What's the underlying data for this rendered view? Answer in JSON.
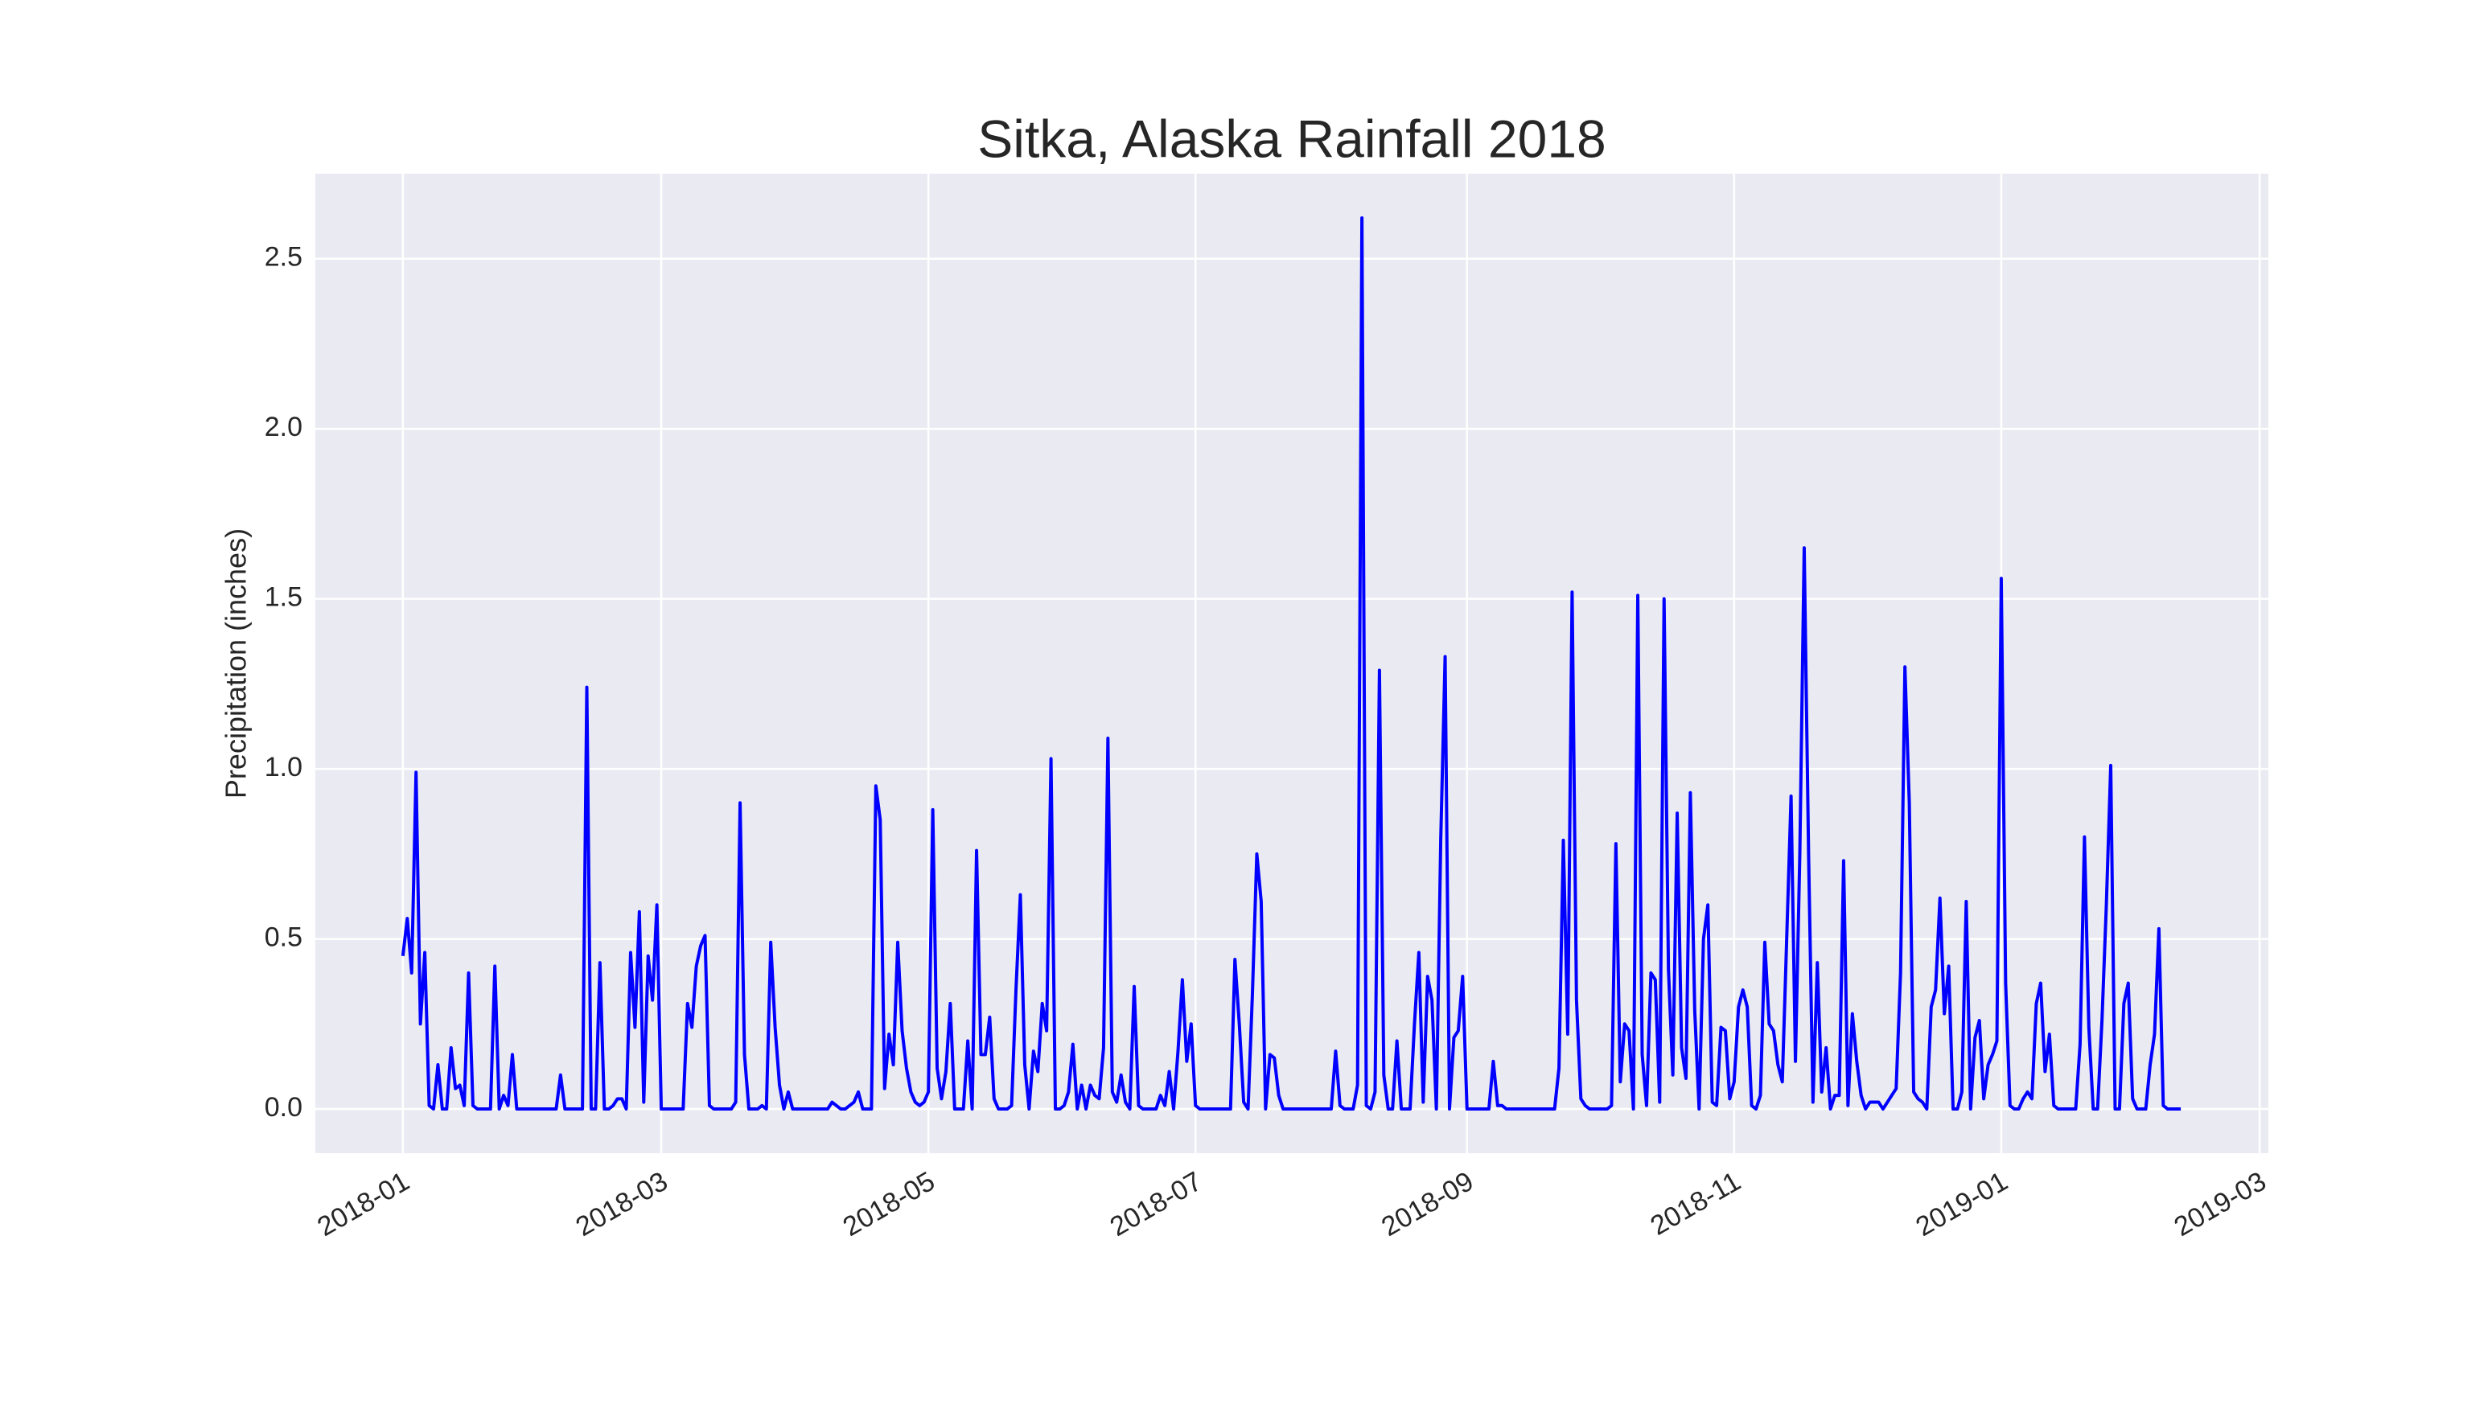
{
  "chart_data": {
    "type": "line",
    "title": "Sitka, Alaska Rainfall 2018",
    "ylabel": "Precipitation (inches)",
    "color": "#0000ff",
    "grid": true,
    "xlim": [
      "2017-12-12",
      "2019-03-03"
    ],
    "xticks": [
      {
        "value": "2018-01-01",
        "label": "2018-01"
      },
      {
        "value": "2018-03-01",
        "label": "2018-03"
      },
      {
        "value": "2018-05-01",
        "label": "2018-05"
      },
      {
        "value": "2018-07-01",
        "label": "2018-07"
      },
      {
        "value": "2018-09-01",
        "label": "2018-09"
      },
      {
        "value": "2018-11-01",
        "label": "2018-11"
      },
      {
        "value": "2019-01-01",
        "label": "2019-01"
      },
      {
        "value": "2019-03-01",
        "label": "2019-03"
      }
    ],
    "ylim": [
      -0.13,
      2.75
    ],
    "yticks": [
      {
        "value": 0,
        "label": "0.0"
      },
      0.5,
      {
        "value": 1,
        "label": "1.0"
      },
      1.5,
      {
        "value": 2,
        "label": "2.0"
      },
      2.5
    ],
    "x": [
      "2018-01-01",
      "2018-01-02",
      "2018-01-03",
      "2018-01-04",
      "2018-01-05",
      "2018-01-06",
      "2018-01-07",
      "2018-01-08",
      "2018-01-09",
      "2018-01-10",
      "2018-01-11",
      "2018-01-12",
      "2018-01-13",
      "2018-01-14",
      "2018-01-15",
      "2018-01-16",
      "2018-01-17",
      "2018-01-18",
      "2018-01-19",
      "2018-01-20",
      "2018-01-21",
      "2018-01-22",
      "2018-01-23",
      "2018-01-24",
      "2018-01-25",
      "2018-01-26",
      "2018-01-27",
      "2018-01-28",
      "2018-01-29",
      "2018-01-30",
      "2018-01-31",
      "2018-02-01",
      "2018-02-02",
      "2018-02-03",
      "2018-02-04",
      "2018-02-05",
      "2018-02-06",
      "2018-02-07",
      "2018-02-08",
      "2018-02-09",
      "2018-02-10",
      "2018-02-11",
      "2018-02-12",
      "2018-02-13",
      "2018-02-14",
      "2018-02-15",
      "2018-02-16",
      "2018-02-17",
      "2018-02-18",
      "2018-02-19",
      "2018-02-20",
      "2018-02-21",
      "2018-02-22",
      "2018-02-23",
      "2018-02-24",
      "2018-02-25",
      "2018-02-26",
      "2018-02-27",
      "2018-02-28",
      "2018-03-01",
      "2018-03-02",
      "2018-03-03",
      "2018-03-04",
      "2018-03-05",
      "2018-03-06",
      "2018-03-07",
      "2018-03-08",
      "2018-03-09",
      "2018-03-10",
      "2018-03-11",
      "2018-03-12",
      "2018-03-13",
      "2018-03-14",
      "2018-03-15",
      "2018-03-16",
      "2018-03-17",
      "2018-03-18",
      "2018-03-19",
      "2018-03-20",
      "2018-03-21",
      "2018-03-22",
      "2018-03-23",
      "2018-03-24",
      "2018-03-25",
      "2018-03-26",
      "2018-03-27",
      "2018-03-28",
      "2018-03-29",
      "2018-03-30",
      "2018-03-31",
      "2018-04-01",
      "2018-04-02",
      "2018-04-03",
      "2018-04-04",
      "2018-04-05",
      "2018-04-06",
      "2018-04-07",
      "2018-04-08",
      "2018-04-09",
      "2018-04-10",
      "2018-04-11",
      "2018-04-12",
      "2018-04-13",
      "2018-04-14",
      "2018-04-15",
      "2018-04-16",
      "2018-04-17",
      "2018-04-18",
      "2018-04-19",
      "2018-04-20",
      "2018-04-21",
      "2018-04-22",
      "2018-04-23",
      "2018-04-24",
      "2018-04-25",
      "2018-04-26",
      "2018-04-27",
      "2018-04-28",
      "2018-04-29",
      "2018-04-30",
      "2018-05-01",
      "2018-05-02",
      "2018-05-03",
      "2018-05-04",
      "2018-05-05",
      "2018-05-06",
      "2018-05-07",
      "2018-05-08",
      "2018-05-09",
      "2018-05-10",
      "2018-05-11",
      "2018-05-12",
      "2018-05-13",
      "2018-05-14",
      "2018-05-15",
      "2018-05-16",
      "2018-05-17",
      "2018-05-18",
      "2018-05-19",
      "2018-05-20",
      "2018-05-21",
      "2018-05-22",
      "2018-05-23",
      "2018-05-24",
      "2018-05-25",
      "2018-05-26",
      "2018-05-27",
      "2018-05-28",
      "2018-05-29",
      "2018-05-30",
      "2018-05-31",
      "2018-06-01",
      "2018-06-02",
      "2018-06-03",
      "2018-06-04",
      "2018-06-05",
      "2018-06-06",
      "2018-06-07",
      "2018-06-08",
      "2018-06-09",
      "2018-06-10",
      "2018-06-11",
      "2018-06-12",
      "2018-06-13",
      "2018-06-14",
      "2018-06-15",
      "2018-06-16",
      "2018-06-17",
      "2018-06-18",
      "2018-06-19",
      "2018-06-20",
      "2018-06-21",
      "2018-06-22",
      "2018-06-23",
      "2018-06-24",
      "2018-06-25",
      "2018-06-26",
      "2018-06-27",
      "2018-06-28",
      "2018-06-29",
      "2018-06-30",
      "2018-07-01",
      "2018-07-02",
      "2018-07-03",
      "2018-07-04",
      "2018-07-05",
      "2018-07-06",
      "2018-07-07",
      "2018-07-08",
      "2018-07-09",
      "2018-07-10",
      "2018-07-11",
      "2018-07-12",
      "2018-07-13",
      "2018-07-14",
      "2018-07-15",
      "2018-07-16",
      "2018-07-17",
      "2018-07-18",
      "2018-07-19",
      "2018-07-20",
      "2018-07-21",
      "2018-07-22",
      "2018-07-23",
      "2018-07-24",
      "2018-07-25",
      "2018-07-26",
      "2018-07-27",
      "2018-07-28",
      "2018-07-29",
      "2018-07-30",
      "2018-07-31",
      "2018-08-01",
      "2018-08-02",
      "2018-08-03",
      "2018-08-04",
      "2018-08-05",
      "2018-08-06",
      "2018-08-07",
      "2018-08-08",
      "2018-08-09",
      "2018-08-10",
      "2018-08-11",
      "2018-08-12",
      "2018-08-13",
      "2018-08-14",
      "2018-08-15",
      "2018-08-16",
      "2018-08-17",
      "2018-08-18",
      "2018-08-19",
      "2018-08-20",
      "2018-08-21",
      "2018-08-22",
      "2018-08-23",
      "2018-08-24",
      "2018-08-25",
      "2018-08-26",
      "2018-08-27",
      "2018-08-28",
      "2018-08-29",
      "2018-08-30",
      "2018-08-31",
      "2018-09-01",
      "2018-09-02",
      "2018-09-03",
      "2018-09-04",
      "2018-09-05",
      "2018-09-06",
      "2018-09-07",
      "2018-09-08",
      "2018-09-09",
      "2018-09-10",
      "2018-09-11",
      "2018-09-12",
      "2018-09-13",
      "2018-09-14",
      "2018-09-15",
      "2018-09-16",
      "2018-09-17",
      "2018-09-18",
      "2018-09-19",
      "2018-09-20",
      "2018-09-21",
      "2018-09-22",
      "2018-09-23",
      "2018-09-24",
      "2018-09-25",
      "2018-09-26",
      "2018-09-27",
      "2018-09-28",
      "2018-09-29",
      "2018-09-30",
      "2018-10-01",
      "2018-10-02",
      "2018-10-03",
      "2018-10-04",
      "2018-10-05",
      "2018-10-06",
      "2018-10-07",
      "2018-10-08",
      "2018-10-09",
      "2018-10-10",
      "2018-10-11",
      "2018-10-12",
      "2018-10-13",
      "2018-10-14",
      "2018-10-15",
      "2018-10-16",
      "2018-10-17",
      "2018-10-18",
      "2018-10-19",
      "2018-10-20",
      "2018-10-21",
      "2018-10-22",
      "2018-10-23",
      "2018-10-24",
      "2018-10-25",
      "2018-10-26",
      "2018-10-27",
      "2018-10-28",
      "2018-10-29",
      "2018-10-30",
      "2018-10-31",
      "2018-11-01",
      "2018-11-02",
      "2018-11-03",
      "2018-11-04",
      "2018-11-05",
      "2018-11-06",
      "2018-11-07",
      "2018-11-08",
      "2018-11-09",
      "2018-11-10",
      "2018-11-11",
      "2018-11-12",
      "2018-11-13",
      "2018-11-14",
      "2018-11-15",
      "2018-11-16",
      "2018-11-17",
      "2018-11-18",
      "2018-11-19",
      "2018-11-20",
      "2018-11-21",
      "2018-11-22",
      "2018-11-23",
      "2018-11-24",
      "2018-11-25",
      "2018-11-26",
      "2018-11-27",
      "2018-11-28",
      "2018-11-29",
      "2018-11-30",
      "2018-12-01",
      "2018-12-02",
      "2018-12-03",
      "2018-12-04",
      "2018-12-05",
      "2018-12-06",
      "2018-12-07",
      "2018-12-08",
      "2018-12-09",
      "2018-12-10",
      "2018-12-11",
      "2018-12-12",
      "2018-12-13",
      "2018-12-14",
      "2018-12-15",
      "2018-12-16",
      "2018-12-17",
      "2018-12-18",
      "2018-12-19",
      "2018-12-20",
      "2018-12-21",
      "2018-12-22",
      "2018-12-23",
      "2018-12-24",
      "2018-12-25",
      "2018-12-26",
      "2018-12-27",
      "2018-12-28",
      "2018-12-29",
      "2018-12-30",
      "2018-12-31",
      "2019-01-01",
      "2019-01-02",
      "2019-01-03",
      "2019-01-04",
      "2019-01-05",
      "2019-01-06",
      "2019-01-07",
      "2019-01-08",
      "2019-01-09",
      "2019-01-10",
      "2019-01-11",
      "2019-01-12",
      "2019-01-13",
      "2019-01-14",
      "2019-01-15",
      "2019-01-16",
      "2019-01-17",
      "2019-01-18",
      "2019-01-19",
      "2019-01-20",
      "2019-01-21",
      "2019-01-22",
      "2019-01-23",
      "2019-01-24",
      "2019-01-25",
      "2019-01-26",
      "2019-01-27",
      "2019-01-28",
      "2019-01-29",
      "2019-01-30",
      "2019-01-31",
      "2019-02-01",
      "2019-02-02",
      "2019-02-03",
      "2019-02-04",
      "2019-02-05",
      "2019-02-06",
      "2019-02-07",
      "2019-02-08",
      "2019-02-09",
      "2019-02-10",
      "2019-02-11"
    ],
    "values": [
      0.45,
      0.56,
      0.4,
      0.99,
      0.25,
      0.46,
      0.01,
      0,
      0.13,
      0,
      0,
      0.18,
      0.06,
      0.07,
      0.01,
      0.4,
      0.01,
      0,
      0,
      0,
      0,
      0.42,
      0,
      0.04,
      0.01,
      0.16,
      0,
      0,
      0,
      0,
      0,
      0,
      0,
      0,
      0,
      0,
      0.1,
      0,
      0,
      0,
      0,
      0,
      1.24,
      0,
      0,
      0.43,
      0,
      0,
      0.01,
      0.03,
      0.03,
      0,
      0.46,
      0.24,
      0.58,
      0.02,
      0.45,
      0.32,
      0.6,
      0,
      0,
      0,
      0,
      0,
      0,
      0.31,
      0.24,
      0.42,
      0.48,
      0.51,
      0.01,
      0,
      0,
      0,
      0,
      0,
      0.02,
      0.9,
      0.16,
      0,
      0,
      0,
      0.01,
      0,
      0.49,
      0.24,
      0.07,
      0,
      0.05,
      0,
      0,
      0,
      0,
      0,
      0,
      0,
      0,
      0,
      0.02,
      0.01,
      0,
      0,
      0.01,
      0.02,
      0.05,
      0,
      0,
      0,
      0.95,
      0.85,
      0.06,
      0.22,
      0.13,
      0.49,
      0.23,
      0.12,
      0.05,
      0.02,
      0.01,
      0.02,
      0.05,
      0.88,
      0.12,
      0.03,
      0.11,
      0.31,
      0,
      0,
      0,
      0.2,
      0,
      0.76,
      0.16,
      0.16,
      0.27,
      0.03,
      0,
      0,
      0,
      0.01,
      0.35,
      0.63,
      0.13,
      0,
      0.17,
      0.11,
      0.31,
      0.23,
      1.03,
      0,
      0,
      0.01,
      0.05,
      0.19,
      0,
      0.07,
      0,
      0.07,
      0.04,
      0.03,
      0.18,
      1.09,
      0.05,
      0.02,
      0.1,
      0.02,
      0,
      0.36,
      0.01,
      0,
      0,
      0,
      0,
      0.04,
      0.01,
      0.11,
      0,
      0.17,
      0.38,
      0.14,
      0.25,
      0.01,
      0,
      0,
      0,
      0,
      0,
      0,
      0,
      0,
      0.44,
      0.25,
      0.02,
      0,
      0.34,
      0.75,
      0.61,
      0,
      0.16,
      0.15,
      0.04,
      0,
      0,
      0,
      0,
      0,
      0,
      0,
      0,
      0,
      0,
      0,
      0,
      0.17,
      0.01,
      0,
      0,
      0,
      0.07,
      2.62,
      0.01,
      0,
      0.05,
      1.29,
      0.1,
      0,
      0,
      0.2,
      0,
      0,
      0,
      0.25,
      0.46,
      0.02,
      0.39,
      0.32,
      0,
      0.79,
      1.33,
      0,
      0.21,
      0.23,
      0.39,
      0,
      0,
      0,
      0,
      0,
      0,
      0.14,
      0.01,
      0.01,
      0,
      0,
      0,
      0,
      0,
      0,
      0,
      0,
      0,
      0,
      0,
      0,
      0.12,
      0.79,
      0.22,
      1.52,
      0.32,
      0.03,
      0.01,
      0,
      0,
      0,
      0,
      0,
      0.01,
      0.78,
      0.08,
      0.25,
      0.23,
      0,
      1.51,
      0.16,
      0.01,
      0.4,
      0.38,
      0.02,
      1.5,
      0.41,
      0.1,
      0.87,
      0.18,
      0.09,
      0.93,
      0.29,
      0,
      0.5,
      0.6,
      0.02,
      0.01,
      0.24,
      0.23,
      0.03,
      0.08,
      0.3,
      0.35,
      0.3,
      0.01,
      0,
      0.04,
      0.49,
      0.25,
      0.23,
      0.13,
      0.08,
      0.5,
      0.92,
      0.14,
      0.75,
      1.65,
      0.75,
      0.02,
      0.43,
      0.05,
      0.18,
      0,
      0.04,
      0.04,
      0.73,
      0.01,
      0.28,
      0.14,
      0.04,
      0,
      0.02,
      0.02,
      0.02,
      0,
      0.02,
      0.04,
      0.06,
      0.4,
      1.3,
      0.9,
      0.05,
      0.03,
      0.02,
      0,
      0.3,
      0.35,
      0.62,
      0.28,
      0.42,
      0,
      0,
      0.05,
      0.61,
      0,
      0.21,
      0.26,
      0.03,
      0.13,
      0.16,
      0.2,
      1.56,
      0.37,
      0.01,
      0,
      0,
      0.03,
      0.05,
      0.03,
      0.31,
      0.37,
      0.11,
      0.22,
      0.01,
      0,
      0,
      0,
      0,
      0,
      0.19,
      0.8,
      0.24,
      0,
      0,
      0.26,
      0.6,
      1.01,
      0,
      0,
      0.31,
      0.37,
      0.03,
      0,
      0,
      0,
      0.13,
      0.22,
      0.53,
      0.01,
      0,
      0,
      0,
      0
    ]
  }
}
